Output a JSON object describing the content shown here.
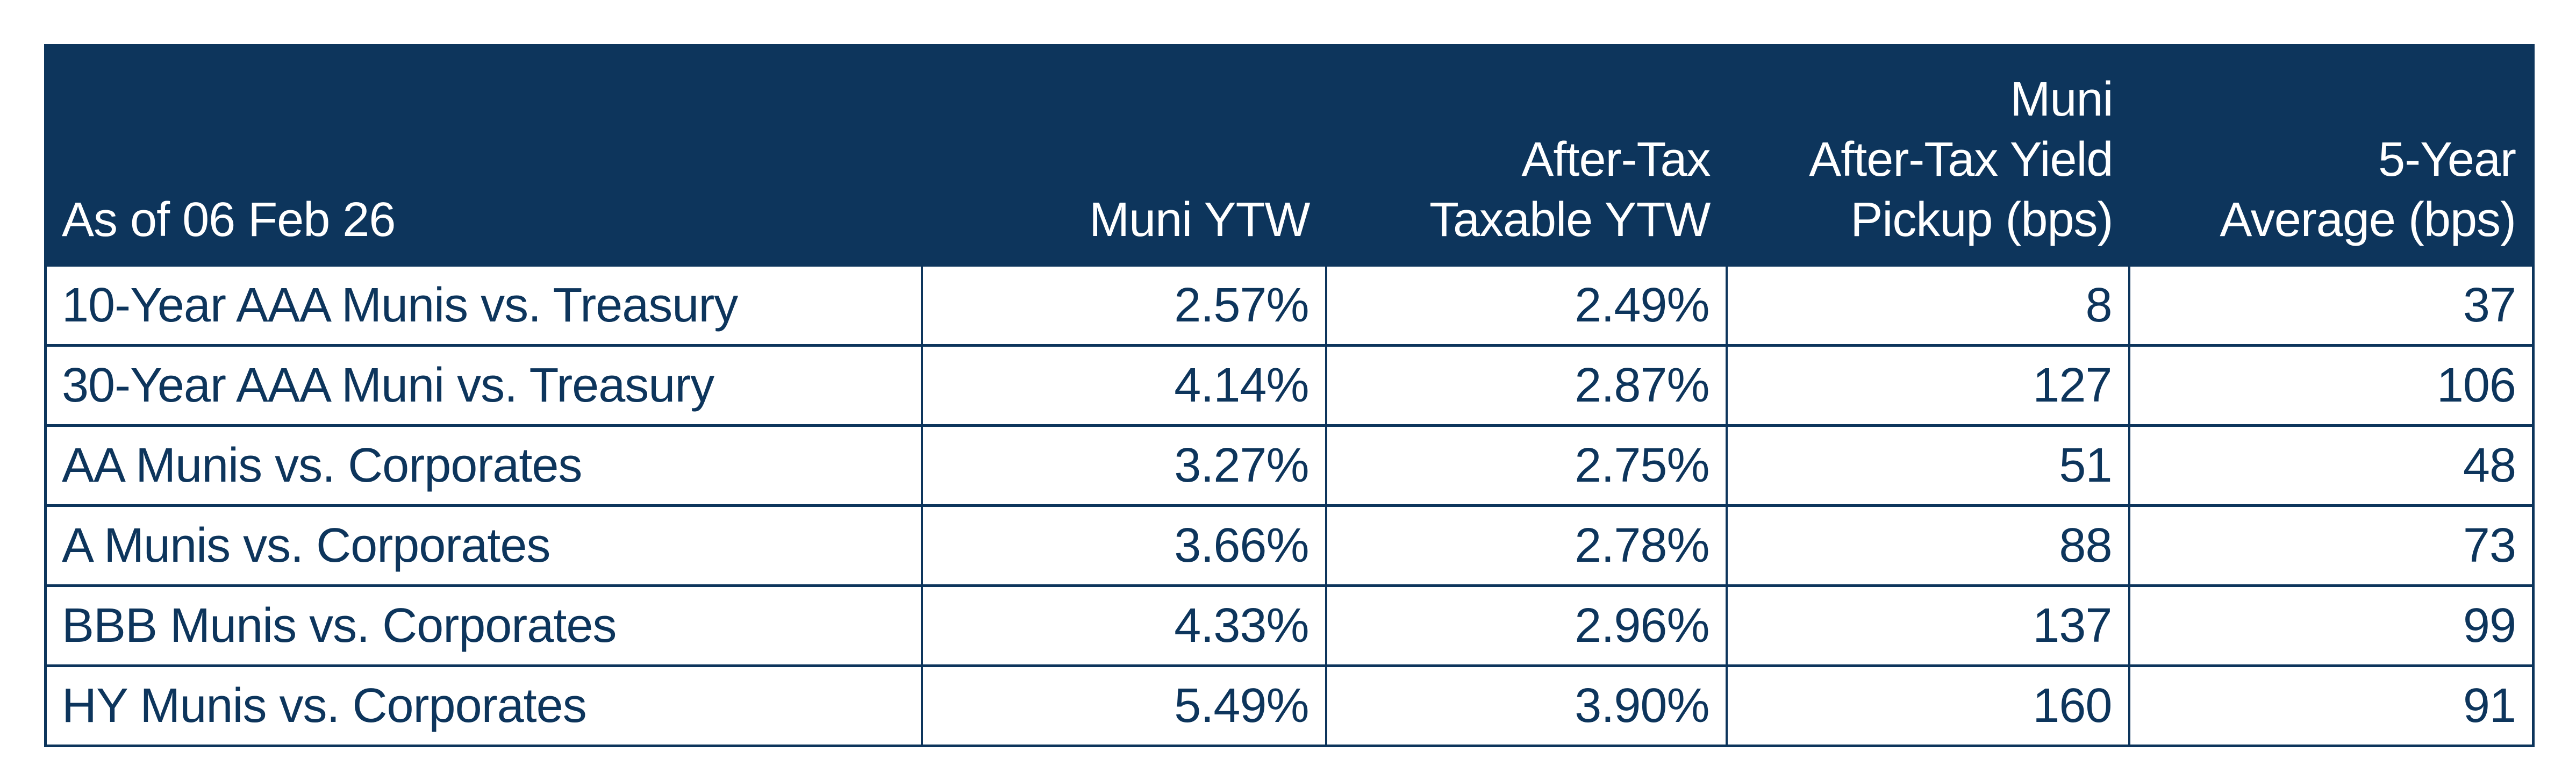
{
  "colors": {
    "navy": "#0d355c",
    "header_text": "#ffffff",
    "page_background": "#ffffff"
  },
  "header": {
    "date_label": "As of 06 Feb 26",
    "muni_ytw_lines": [
      "Muni YTW"
    ],
    "after_tax_lines": [
      "After-Tax",
      "Taxable YTW"
    ],
    "pickup_lines": [
      "Muni",
      "After-Tax Yield",
      "Pickup (bps)"
    ],
    "five_year_lines": [
      "5-Year",
      "Average (bps)"
    ]
  },
  "chart_data": {
    "type": "table",
    "columns": [
      "As of 06 Feb 26",
      "Muni YTW",
      "After-Tax Taxable YTW",
      "Muni After-Tax Yield Pickup (bps)",
      "5-Year Average (bps)"
    ],
    "rows": [
      [
        "10-Year AAA Munis vs. Treasury",
        "2.57%",
        "2.49%",
        "8",
        "37"
      ],
      [
        "30-Year AAA Muni vs. Treasury",
        "4.14%",
        "2.87%",
        "127",
        "106"
      ],
      [
        "AA Munis vs. Corporates",
        "3.27%",
        "2.75%",
        "51",
        "48"
      ],
      [
        "A Munis vs. Corporates",
        "3.66%",
        "2.78%",
        "88",
        "73"
      ],
      [
        "BBB Munis vs. Corporates",
        "4.33%",
        "2.96%",
        "137",
        "99"
      ],
      [
        "HY Munis vs. Corporates",
        "5.49%",
        "3.90%",
        "160",
        "91"
      ]
    ]
  }
}
